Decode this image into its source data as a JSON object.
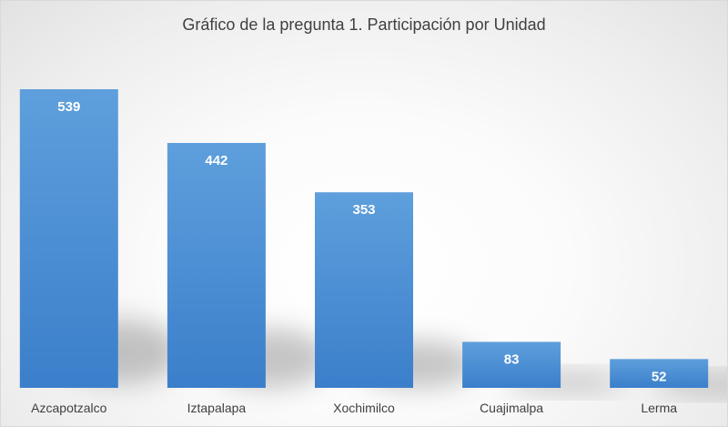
{
  "chart_data": {
    "type": "bar",
    "title": "Gráfico de la pregunta 1. Participación por Unidad",
    "categories": [
      "Azcapotzalco",
      "Iztapalapa",
      "Xochimilco",
      "Cuajimalpa",
      "Lerma"
    ],
    "values": [
      539,
      442,
      353,
      83,
      52
    ],
    "data_labels": [
      "539",
      "442",
      "353",
      "83",
      "52"
    ],
    "xlabel": "",
    "ylabel": "",
    "ylim": [
      0,
      600
    ],
    "grid": false,
    "legend": "none",
    "colors": {
      "bar_top": "#5e9fdc",
      "bar_bottom": "#3b7fcb",
      "label_text": "#ffffff",
      "axis_text": "#404040"
    }
  }
}
